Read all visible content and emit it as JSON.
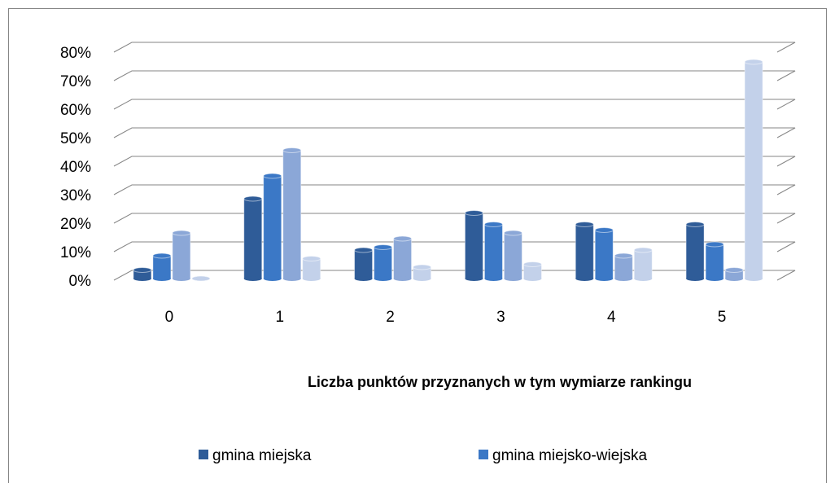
{
  "chart_data": {
    "type": "bar",
    "xlabel": "Liczba punktów przyznanych w tym wymiarze rankingu",
    "categories": [
      "0",
      "1",
      "2",
      "3",
      "4",
      "5"
    ],
    "series": [
      {
        "name": "gmina miejska",
        "color": "#2f5c98",
        "values": [
          3,
          28,
          10,
          23,
          19,
          19
        ]
      },
      {
        "name": "gmina miejsko-wiejska",
        "color": "#3b78c6",
        "values": [
          8,
          36,
          11,
          19,
          17,
          12
        ]
      },
      {
        "color": "#8ba7d7",
        "values": [
          16,
          45,
          14,
          16,
          8,
          3
        ]
      },
      {
        "color": "#c3d1ea",
        "values": [
          0,
          7,
          4,
          5,
          10,
          76
        ]
      }
    ],
    "ylim": [
      0,
      80
    ],
    "yticks": [
      {
        "value": 0,
        "label": "0%"
      },
      {
        "value": 10,
        "label": "10%"
      },
      {
        "value": 20,
        "label": "20%"
      },
      {
        "value": 30,
        "label": "30%"
      },
      {
        "value": 40,
        "label": "40%"
      },
      {
        "value": 50,
        "label": "50%"
      },
      {
        "value": 60,
        "label": "60%"
      },
      {
        "value": 70,
        "label": "70%"
      },
      {
        "value": 80,
        "label": "80%"
      }
    ],
    "grid": true
  }
}
